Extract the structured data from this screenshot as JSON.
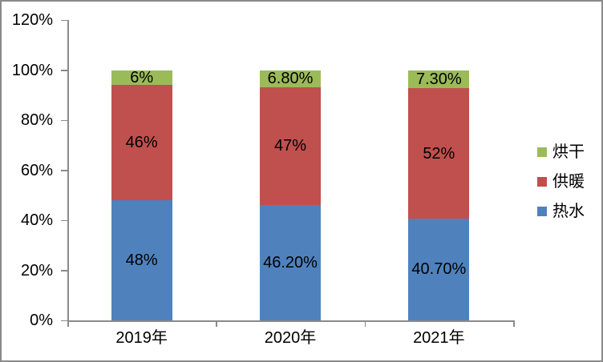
{
  "chart_data": {
    "type": "bar",
    "stacked": true,
    "title": "",
    "categories": [
      "2019年",
      "2020年",
      "2021年"
    ],
    "series": [
      {
        "name": "热水",
        "color": "#4F81BD",
        "values": [
          48,
          46.2,
          40.7
        ],
        "labels": [
          "48%",
          "46.20%",
          "40.70%"
        ]
      },
      {
        "name": "供暖",
        "color": "#C0504D",
        "values": [
          46,
          47,
          52
        ],
        "labels": [
          "46%",
          "47%",
          "52%"
        ]
      },
      {
        "name": "烘干",
        "color": "#9BBB59",
        "values": [
          6,
          6.8,
          7.3
        ],
        "labels": [
          "6%",
          "6.80%",
          "7.30%"
        ]
      }
    ],
    "xlabel": "",
    "ylabel": "",
    "ylim": [
      0,
      120
    ],
    "y_tick_step": 20,
    "y_tick_labels": [
      "0%",
      "20%",
      "40%",
      "60%",
      "80%",
      "100%",
      "120%"
    ],
    "grid": false,
    "legend_position": "right",
    "legend_order_top_to_bottom": [
      "烘干",
      "供暖",
      "热水"
    ]
  },
  "colors": {
    "axis": "#8a8a8a",
    "border": "#8a8a8a",
    "text": "#000000",
    "background": "#FFFFFF"
  }
}
